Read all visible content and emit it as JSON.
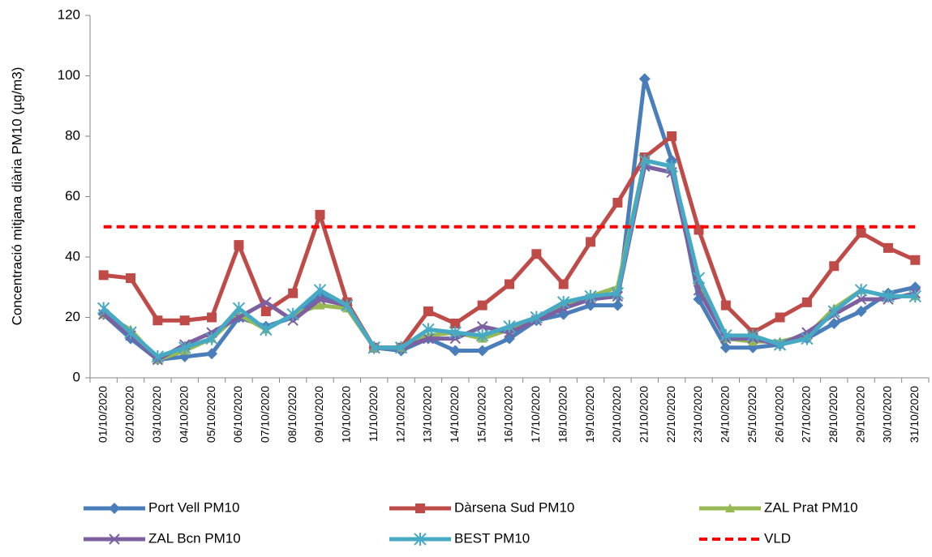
{
  "chart_data": {
    "type": "line",
    "y_label": "Concentració mitjana diària PM10 (µg/m3)",
    "categories": [
      "01/10/2020",
      "02/10/2020",
      "03/10/2020",
      "04/10/2020",
      "05/10/2020",
      "06/10/2020",
      "07/10/2020",
      "08/10/2020",
      "09/10/2020",
      "10/10/2020",
      "11/10/2020",
      "12/10/2020",
      "13/10/2020",
      "14/10/2020",
      "15/10/2020",
      "16/10/2020",
      "17/10/2020",
      "18/10/2020",
      "19/10/2020",
      "20/10/2020",
      "21/10/2020",
      "22/10/2020",
      "23/10/2020",
      "24/10/2020",
      "25/10/2020",
      "26/10/2020",
      "27/10/2020",
      "28/10/2020",
      "29/10/2020",
      "30/10/2020",
      "31/10/2020"
    ],
    "ylim": [
      0,
      120
    ],
    "yticks": [
      0,
      20,
      40,
      60,
      80,
      100,
      120
    ],
    "grid": false,
    "series": [
      {
        "name": "Port Vell PM10",
        "color": "#4a7ebb",
        "marker": "diamond",
        "values": [
          21,
          13,
          6,
          7,
          8,
          20,
          17,
          20,
          27,
          24,
          10,
          9,
          13,
          9,
          9,
          13,
          19,
          21,
          24,
          24,
          99,
          72,
          26,
          10,
          10,
          11,
          13,
          18,
          22,
          28,
          30
        ]
      },
      {
        "name": "Dàrsena Sud PM10",
        "color": "#be4b48",
        "marker": "square",
        "values": [
          34,
          33,
          19,
          19,
          20,
          44,
          22,
          28,
          54,
          25,
          10,
          10,
          22,
          18,
          24,
          31,
          41,
          31,
          45,
          58,
          73,
          80,
          49,
          24,
          15,
          20,
          25,
          37,
          48,
          43,
          39
        ]
      },
      {
        "name": "ZAL Prat PM10",
        "color": "#98b954",
        "marker": "triangle",
        "values": [
          21,
          16,
          6,
          9,
          13,
          21,
          16,
          21,
          24,
          23,
          10,
          10,
          14,
          15,
          13,
          16,
          20,
          24,
          27,
          30,
          72,
          70,
          32,
          13,
          12,
          12,
          14,
          23,
          29,
          27,
          27
        ]
      },
      {
        "name": "ZAL Bcn PM10",
        "color": "#7d60a0",
        "marker": "x",
        "values": [
          21,
          14,
          6,
          11,
          15,
          20,
          25,
          19,
          26,
          24,
          10,
          10,
          13,
          13,
          17,
          15,
          19,
          23,
          26,
          27,
          70,
          68,
          29,
          13,
          13,
          11,
          15,
          21,
          26,
          26,
          28
        ]
      },
      {
        "name": "BEST PM10",
        "color": "#46aac5",
        "marker": "star",
        "values": [
          23,
          15,
          7,
          10,
          13,
          23,
          16,
          21,
          29,
          24,
          10,
          10,
          16,
          15,
          14,
          17,
          20,
          25,
          27,
          28,
          72,
          70,
          33,
          14,
          14,
          11,
          13,
          22,
          29,
          27,
          27
        ]
      },
      {
        "name": "VLD",
        "color": "#ff0000",
        "marker": "none",
        "dashed": true,
        "values": [
          50,
          50,
          50,
          50,
          50,
          50,
          50,
          50,
          50,
          50,
          50,
          50,
          50,
          50,
          50,
          50,
          50,
          50,
          50,
          50,
          50,
          50,
          50,
          50,
          50,
          50,
          50,
          50,
          50,
          50,
          50
        ]
      }
    ]
  }
}
